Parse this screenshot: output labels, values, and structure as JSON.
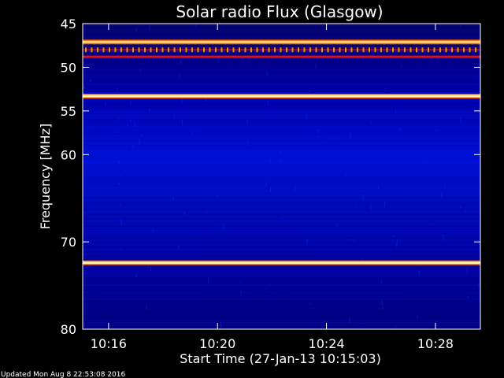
{
  "chart_data": {
    "type": "heatmap",
    "title": "Solar radio Flux (Glasgow)",
    "xlabel": "Start Time (27-Jan-13 10:15:03)",
    "ylabel": "Frequency [MHz]",
    "x_unit": "minutes after 10:15:03",
    "xlim": [
      0,
      14.6
    ],
    "ylim": [
      45,
      80
    ],
    "y_scale": "linear, inverted (45 at top)",
    "x_ticks": [
      {
        "value": 0.95,
        "label": "10:16"
      },
      {
        "value": 4.95,
        "label": "10:20"
      },
      {
        "value": 8.95,
        "label": "10:24"
      },
      {
        "value": 12.95,
        "label": "10:28"
      }
    ],
    "y_ticks": [
      {
        "value": 45,
        "label": "45"
      },
      {
        "value": 50,
        "label": "50"
      },
      {
        "value": 55,
        "label": "55"
      },
      {
        "value": 60,
        "label": "60"
      },
      {
        "value": 70,
        "label": "70"
      },
      {
        "value": 80,
        "label": "80"
      }
    ],
    "colormap": [
      "#00008b",
      "#0000ff",
      "#ff0000",
      "#ffa500",
      "#ffff00",
      "#ffffff"
    ],
    "background_color": "#05007a",
    "bands": [
      {
        "freq": 47.1,
        "intensity": "high",
        "color": "#ffd36a"
      },
      {
        "freq": 48.0,
        "intensity": "medium",
        "color": "#ff8a00",
        "pattern": "pulsed"
      },
      {
        "freq": 48.8,
        "intensity": "medium",
        "color": "#e01010"
      },
      {
        "freq": 53.3,
        "intensity": "high",
        "color": "#fff6b0"
      },
      {
        "freq": 72.4,
        "intensity": "high",
        "color": "#fff6b0"
      }
    ],
    "grid": false,
    "legend": "none"
  },
  "footer": {
    "updated_text": "Updated Mon Aug  8 22:53:08 2016"
  }
}
